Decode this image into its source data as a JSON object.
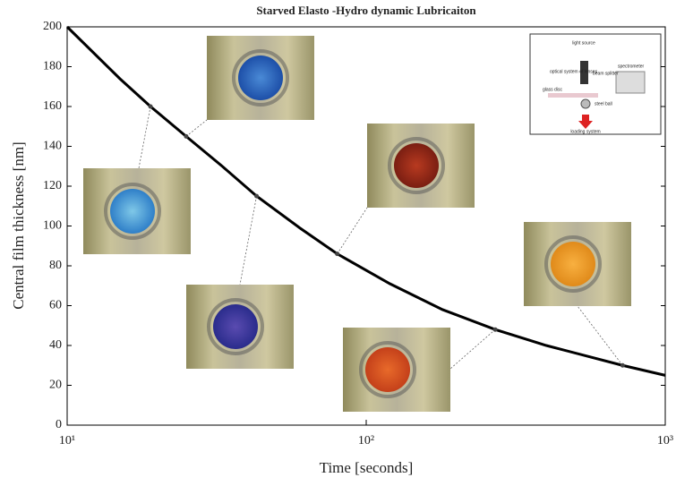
{
  "chart_data": {
    "type": "line",
    "title": "Starved Elasto -Hydro dynamic Lubricaiton",
    "x_label": "Time [seconds]",
    "y_label": "Central film thickness [nm]",
    "log_x": true,
    "x": [
      10,
      15,
      19,
      25,
      33,
      43,
      60,
      80,
      120,
      180,
      270,
      400,
      720,
      1000
    ],
    "series": [
      {
        "color": "#000000",
        "values": [
          200,
          174,
          160,
          145,
          130,
          115,
          99,
          86,
          71,
          58,
          48,
          40,
          30,
          25
        ]
      }
    ],
    "points": {
      "x": [
        19,
        25,
        43,
        80,
        270,
        720
      ],
      "y": [
        160,
        145,
        115,
        86,
        48,
        30
      ]
    },
    "xlim": [
      10,
      1000
    ],
    "xticks": [
      {
        "value": 10,
        "label": "10¹"
      },
      {
        "value": 100,
        "label": "10²"
      },
      {
        "value": 1000,
        "label": "10³"
      }
    ],
    "ylim": [
      0,
      200
    ],
    "yticks": [
      0,
      20,
      40,
      60,
      80,
      100,
      120,
      140,
      160,
      180,
      200
    ],
    "inset_labels": [
      "light source",
      "optical system of lenses",
      "beam splitter",
      "spectrometer",
      "glass disc",
      "steel ball",
      "loading system"
    ]
  }
}
